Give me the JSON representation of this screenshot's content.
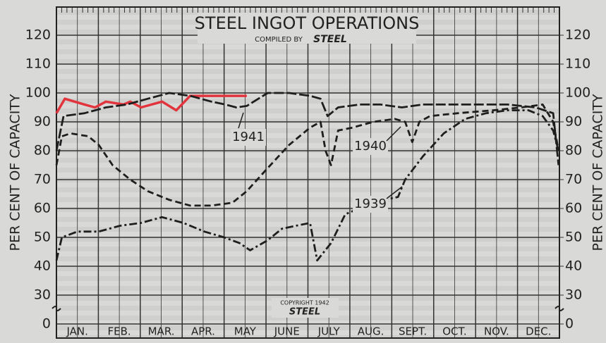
{
  "chart_data": {
    "type": "line",
    "title": "STEEL INGOT OPERATIONS",
    "subtitle": "COMPILED BY",
    "subtitle_logo": "STEEL",
    "copyright": "COPYRIGHT 1942",
    "copyright_logo": "STEEL",
    "ylabel": "PER CENT OF CAPACITY",
    "y2label": "PER CENT OF CAPACITY",
    "xlim": [
      0,
      12
    ],
    "xticks": [
      {
        "value": 0.5,
        "label": "JAN."
      },
      {
        "value": 1.5,
        "label": "FEB."
      },
      {
        "value": 2.5,
        "label": "MAR."
      },
      {
        "value": 3.5,
        "label": "APR."
      },
      {
        "value": 4.5,
        "label": "MAY"
      },
      {
        "value": 5.5,
        "label": "JUNE"
      },
      {
        "value": 6.5,
        "label": "JULY"
      },
      {
        "value": 7.5,
        "label": "AUG."
      },
      {
        "value": 8.5,
        "label": "SEPT."
      },
      {
        "value": 9.5,
        "label": "OCT."
      },
      {
        "value": 10.5,
        "label": "NOV."
      },
      {
        "value": 11.5,
        "label": "DEC."
      }
    ],
    "ylim": [
      0,
      120
    ],
    "yticks": [
      0,
      30,
      40,
      50,
      60,
      70,
      80,
      90,
      100,
      110,
      120
    ],
    "y2lim": [
      0,
      120
    ],
    "y2ticks": [
      0,
      30,
      40,
      50,
      60,
      70,
      80,
      90,
      100,
      110,
      120
    ],
    "ybreak": [
      0,
      30
    ],
    "grid": true,
    "series": [
      {
        "color": "#e2343c",
        "x": [
          0,
          0.2,
          0.67,
          0.92,
          1.18,
          1.6,
          1.76,
          2.02,
          2.52,
          2.86,
          3.19,
          3.7,
          4.2,
          4.54
        ],
        "values": [
          93,
          98,
          96,
          95,
          97,
          96,
          97,
          95,
          97,
          94,
          99,
          99,
          99,
          99
        ]
      },
      {
        "name": "1941",
        "color": "#1e1e1e",
        "x": [
          0,
          0.17,
          0.67,
          1.18,
          1.68,
          2.18,
          2.69,
          3.19,
          3.7,
          4.03,
          4.29,
          4.54,
          5.04,
          5.55,
          6.05,
          6.3,
          6.47,
          6.72,
          7.23,
          7.73,
          8.24,
          8.74,
          9.41,
          10.08,
          10.76,
          11.43,
          11.85,
          11.98
        ],
        "values": [
          80,
          92,
          93,
          95,
          96,
          98,
          100,
          99,
          97,
          96,
          95,
          95.5,
          100,
          100,
          99,
          98,
          92,
          95,
          96,
          96,
          95,
          96,
          96,
          96,
          96,
          95,
          93,
          75
        ]
      },
      {
        "name": "1940",
        "color": "#1e1e1e",
        "x": [
          0,
          0.13,
          0.34,
          0.76,
          1.01,
          1.34,
          1.76,
          2.18,
          2.69,
          3.19,
          3.7,
          4.2,
          4.54,
          5.04,
          5.55,
          6.05,
          6.3,
          6.42,
          6.55,
          6.72,
          7.06,
          7.56,
          8.07,
          8.32,
          8.49,
          8.66,
          8.91,
          9.58,
          10.42,
          11.09,
          11.6,
          11.85,
          11.98
        ],
        "values": [
          75,
          85,
          86,
          85,
          82,
          75,
          70,
          66,
          63,
          61,
          61,
          62,
          66,
          74,
          82,
          88,
          90,
          80,
          75,
          87,
          88,
          90,
          91,
          90,
          83,
          90,
          92,
          93,
          94,
          95,
          96,
          90,
          80
        ]
      },
      {
        "name": "1939",
        "color": "#1e1e1e",
        "x": [
          0,
          0.13,
          0.5,
          1.01,
          1.51,
          2.02,
          2.52,
          3.03,
          3.53,
          4.0,
          4.37,
          4.62,
          5.04,
          5.38,
          5.71,
          6.05,
          6.22,
          6.55,
          6.89,
          7.39,
          7.82,
          8.15,
          8.32,
          8.74,
          9.24,
          9.75,
          10.25,
          10.76,
          11.26,
          11.6,
          11.85,
          11.98
        ],
        "values": [
          42,
          50,
          52,
          52,
          54,
          55,
          57,
          55,
          52,
          50,
          48,
          45.5,
          49,
          53,
          54,
          55,
          42,
          48,
          58,
          61,
          63,
          64,
          70,
          78,
          86,
          91,
          93,
          94,
          94,
          92,
          87,
          80
        ]
      }
    ]
  }
}
